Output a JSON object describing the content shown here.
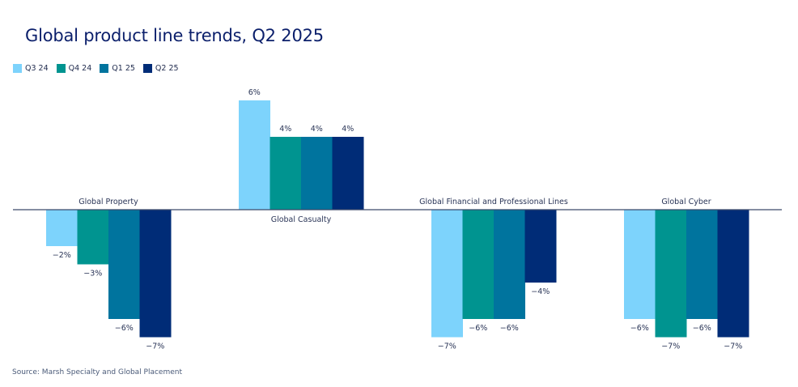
{
  "chart_data": {
    "type": "bar",
    "title": "Global product line trends, Q2 2025",
    "categories": [
      "Global Property",
      "Global Casualty",
      "Global Financial and Professional Lines",
      "Global Cyber"
    ],
    "series": [
      {
        "name": "Q3 24",
        "color": "#7dd3fc",
        "values": [
          -2,
          6,
          -7,
          -6
        ]
      },
      {
        "name": "Q4 24",
        "color": "#009490",
        "values": [
          -3,
          4,
          -6,
          -7
        ]
      },
      {
        "name": "Q1 25",
        "color": "#00749e",
        "values": [
          -6,
          4,
          -6,
          -6
        ]
      },
      {
        "name": "Q2 25",
        "color": "#002c77",
        "values": [
          -7,
          4,
          -4,
          -7
        ]
      }
    ],
    "value_format": "percent",
    "xlabel": "",
    "ylabel": "",
    "ylim": [
      -7,
      6
    ],
    "grid": false,
    "legend": "top-left",
    "source": "Source: Marsh Specialty and Global Placement"
  }
}
